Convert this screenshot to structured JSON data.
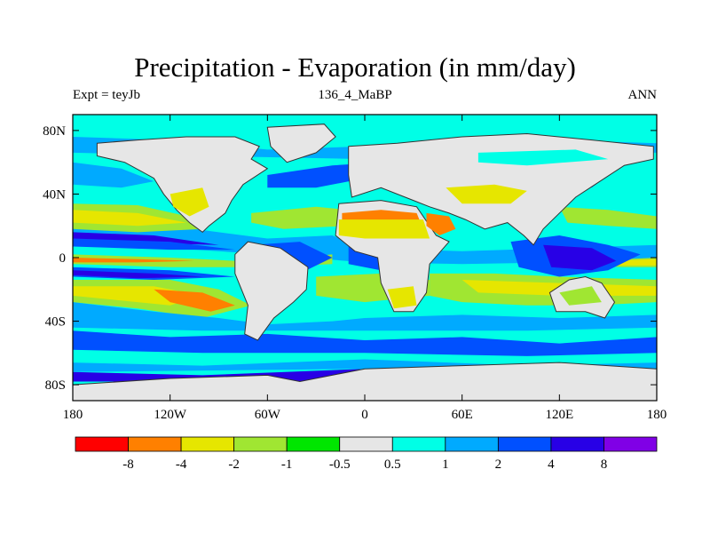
{
  "chart_data": {
    "type": "heatmap",
    "title": "Precipitation - Evaporation (in mm/day)",
    "subtitle_left": "Expt = teyJb",
    "subtitle_center": "136_4_MaBP",
    "subtitle_right": "ANN",
    "x_ticks": [
      "180",
      "120W",
      "60W",
      "0",
      "60E",
      "120E",
      "180"
    ],
    "x_tick_values": [
      -180,
      -120,
      -60,
      0,
      60,
      120,
      180
    ],
    "y_ticks": [
      "80N",
      "40N",
      "0",
      "40S",
      "80S"
    ],
    "y_tick_values": [
      80,
      40,
      0,
      -40,
      -80
    ],
    "xlim": [
      -180,
      180
    ],
    "ylim": [
      -90,
      90
    ],
    "colorbar": {
      "labels": [
        "-8",
        "-4",
        "-2",
        "-1",
        "-0.5",
        "0.5",
        "1",
        "2",
        "4",
        "8"
      ],
      "colors": [
        "#ff0000",
        "#ff8000",
        "#e6e600",
        "#a0e632",
        "#00e600",
        "#e6e6e6",
        "#00ffe6",
        "#00aaff",
        "#0050ff",
        "#2800e6",
        "#8000e6"
      ]
    }
  }
}
